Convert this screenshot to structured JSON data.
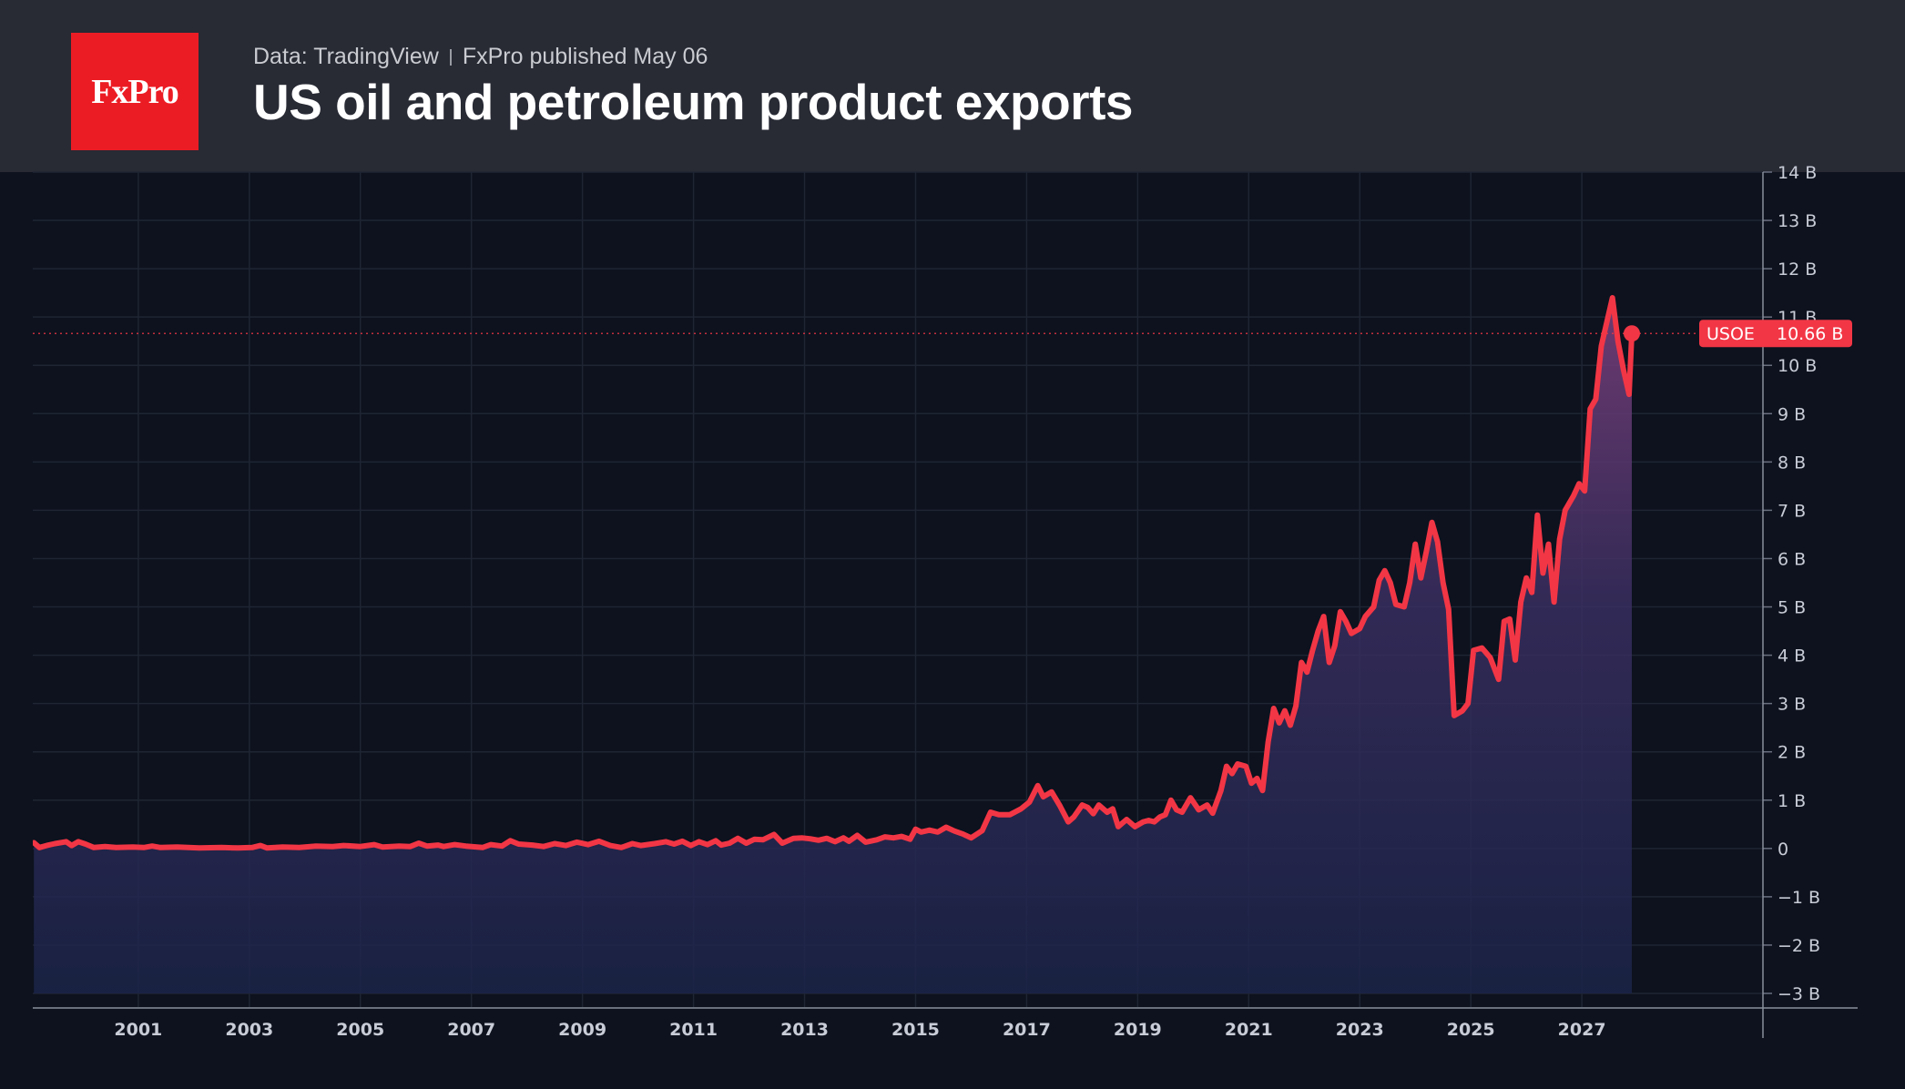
{
  "header": {
    "source": "Data: TradingView",
    "published": "FxPro published May 06",
    "logo": "FxPro"
  },
  "chart_data": {
    "type": "area",
    "title": "US oil and petroleum product exports",
    "xlabel": "",
    "ylabel": "",
    "ylim": [
      -3,
      14
    ],
    "xlim": [
      1999.6,
      2028.4
    ],
    "x_ticks": [
      "2001",
      "2003",
      "2005",
      "2007",
      "2009",
      "2011",
      "2013",
      "2015",
      "2017",
      "2019",
      "2021",
      "2023",
      "2025",
      "2027"
    ],
    "y_ticks": [
      "−3 B",
      "−2 B",
      "−1 B",
      "0",
      "1 B",
      "2 B",
      "3 B",
      "4 B",
      "5 B",
      "6 B",
      "7 B",
      "8 B",
      "9 B",
      "10 B",
      "11 B",
      "12 B",
      "13 B",
      "14 B"
    ],
    "grid": true,
    "unit": "B",
    "series": [
      {
        "name": "USOE",
        "color": "#f23645",
        "last_value_label": "10.66 B",
        "points": [
          [
            1999.62,
            0.12
          ],
          [
            1999.72,
            0.02
          ],
          [
            1999.85,
            0.06
          ],
          [
            2000.0,
            0.1
          ],
          [
            2000.2,
            0.14
          ],
          [
            2000.3,
            0.06
          ],
          [
            2000.42,
            0.14
          ],
          [
            2000.55,
            0.09
          ],
          [
            2000.7,
            0.02
          ],
          [
            2000.9,
            0.04
          ],
          [
            2001.1,
            0.02
          ],
          [
            2001.4,
            0.03
          ],
          [
            2001.6,
            0.02
          ],
          [
            2001.75,
            0.05
          ],
          [
            2001.9,
            0.02
          ],
          [
            2002.2,
            0.03
          ],
          [
            2002.6,
            0.01
          ],
          [
            2003.0,
            0.02
          ],
          [
            2003.3,
            0.01
          ],
          [
            2003.55,
            0.02
          ],
          [
            2003.7,
            0.06
          ],
          [
            2003.82,
            0.01
          ],
          [
            2004.1,
            0.03
          ],
          [
            2004.4,
            0.02
          ],
          [
            2004.7,
            0.05
          ],
          [
            2005.0,
            0.04
          ],
          [
            2005.2,
            0.06
          ],
          [
            2005.5,
            0.04
          ],
          [
            2005.75,
            0.08
          ],
          [
            2005.9,
            0.03
          ],
          [
            2006.2,
            0.05
          ],
          [
            2006.4,
            0.04
          ],
          [
            2006.55,
            0.11
          ],
          [
            2006.7,
            0.05
          ],
          [
            2006.9,
            0.07
          ],
          [
            2007.0,
            0.04
          ],
          [
            2007.2,
            0.08
          ],
          [
            2007.4,
            0.05
          ],
          [
            2007.7,
            0.02
          ],
          [
            2007.85,
            0.08
          ],
          [
            2008.05,
            0.05
          ],
          [
            2008.2,
            0.16
          ],
          [
            2008.35,
            0.09
          ],
          [
            2008.6,
            0.07
          ],
          [
            2008.8,
            0.04
          ],
          [
            2009.0,
            0.1
          ],
          [
            2009.2,
            0.06
          ],
          [
            2009.4,
            0.13
          ],
          [
            2009.6,
            0.08
          ],
          [
            2009.8,
            0.15
          ],
          [
            2010.0,
            0.06
          ],
          [
            2010.2,
            0.02
          ],
          [
            2010.4,
            0.1
          ],
          [
            2010.55,
            0.06
          ],
          [
            2010.8,
            0.1
          ],
          [
            2011.0,
            0.14
          ],
          [
            2011.15,
            0.09
          ],
          [
            2011.3,
            0.15
          ],
          [
            2011.45,
            0.06
          ],
          [
            2011.6,
            0.14
          ],
          [
            2011.75,
            0.08
          ],
          [
            2011.9,
            0.16
          ],
          [
            2012.0,
            0.07
          ],
          [
            2012.15,
            0.11
          ],
          [
            2012.3,
            0.21
          ],
          [
            2012.45,
            0.11
          ],
          [
            2012.6,
            0.19
          ],
          [
            2012.75,
            0.18
          ],
          [
            2012.95,
            0.29
          ],
          [
            2013.1,
            0.11
          ],
          [
            2013.3,
            0.21
          ],
          [
            2013.45,
            0.22
          ],
          [
            2013.6,
            0.2
          ],
          [
            2013.75,
            0.17
          ],
          [
            2013.9,
            0.21
          ],
          [
            2014.05,
            0.14
          ],
          [
            2014.2,
            0.22
          ],
          [
            2014.3,
            0.15
          ],
          [
            2014.45,
            0.27
          ],
          [
            2014.6,
            0.13
          ],
          [
            2014.8,
            0.18
          ],
          [
            2014.95,
            0.24
          ],
          [
            2015.1,
            0.22
          ],
          [
            2015.25,
            0.25
          ],
          [
            2015.4,
            0.19
          ],
          [
            2015.5,
            0.4
          ],
          [
            2015.6,
            0.34
          ],
          [
            2015.75,
            0.38
          ],
          [
            2015.9,
            0.34
          ],
          [
            2016.05,
            0.44
          ],
          [
            2016.2,
            0.36
          ],
          [
            2016.35,
            0.3
          ],
          [
            2016.5,
            0.22
          ],
          [
            2016.7,
            0.37
          ],
          [
            2016.85,
            0.75
          ],
          [
            2017.0,
            0.7
          ],
          [
            2017.2,
            0.7
          ],
          [
            2017.4,
            0.82
          ],
          [
            2017.55,
            0.96
          ],
          [
            2017.7,
            1.3
          ],
          [
            2017.8,
            1.07
          ],
          [
            2017.95,
            1.17
          ],
          [
            2018.1,
            0.88
          ],
          [
            2018.25,
            0.55
          ],
          [
            2018.35,
            0.65
          ],
          [
            2018.5,
            0.9
          ],
          [
            2018.6,
            0.85
          ],
          [
            2018.7,
            0.72
          ],
          [
            2018.8,
            0.9
          ],
          [
            2018.95,
            0.75
          ],
          [
            2019.05,
            0.82
          ],
          [
            2019.15,
            0.45
          ],
          [
            2019.3,
            0.6
          ],
          [
            2019.45,
            0.45
          ],
          [
            2019.6,
            0.55
          ],
          [
            2019.7,
            0.58
          ],
          [
            2019.8,
            0.55
          ],
          [
            2019.9,
            0.65
          ],
          [
            2020.0,
            0.7
          ],
          [
            2020.1,
            1.0
          ],
          [
            2020.2,
            0.8
          ],
          [
            2020.3,
            0.75
          ],
          [
            2020.45,
            1.05
          ],
          [
            2020.6,
            0.8
          ],
          [
            2020.75,
            0.9
          ],
          [
            2020.85,
            0.73
          ],
          [
            2021.0,
            1.2
          ],
          [
            2021.1,
            1.7
          ],
          [
            2021.2,
            1.55
          ],
          [
            2021.3,
            1.75
          ],
          [
            2021.45,
            1.7
          ],
          [
            2021.55,
            1.35
          ],
          [
            2021.65,
            1.45
          ],
          [
            2021.75,
            1.2
          ],
          [
            2021.85,
            2.2
          ],
          [
            2021.95,
            2.9
          ],
          [
            2022.05,
            2.6
          ],
          [
            2022.15,
            2.85
          ],
          [
            2022.25,
            2.55
          ],
          [
            2022.35,
            2.95
          ],
          [
            2022.45,
            3.85
          ],
          [
            2022.55,
            3.65
          ],
          [
            2022.65,
            4.1
          ],
          [
            2022.75,
            4.5
          ],
          [
            2022.85,
            4.8
          ],
          [
            2022.95,
            3.85
          ],
          [
            2023.05,
            4.2
          ],
          [
            2023.15,
            4.9
          ],
          [
            2023.25,
            4.7
          ],
          [
            2023.35,
            4.45
          ],
          [
            2023.5,
            4.55
          ],
          [
            2023.6,
            4.8
          ],
          [
            2023.75,
            5.0
          ],
          [
            2023.85,
            5.55
          ],
          [
            2023.95,
            5.75
          ],
          [
            2024.05,
            5.5
          ],
          [
            2024.15,
            5.05
          ],
          [
            2024.3,
            5.0
          ],
          [
            2024.4,
            5.5
          ],
          [
            2024.5,
            6.3
          ],
          [
            2024.6,
            5.6
          ],
          [
            2024.7,
            6.15
          ],
          [
            2024.8,
            6.75
          ],
          [
            2024.9,
            6.35
          ],
          [
            2025.0,
            5.5
          ],
          [
            2025.1,
            4.95
          ],
          [
            2025.2,
            2.75
          ],
          [
            2025.35,
            2.85
          ],
          [
            2025.45,
            3.0
          ],
          [
            2025.55,
            4.1
          ],
          [
            2025.7,
            4.15
          ],
          [
            2025.85,
            3.95
          ],
          [
            2026.0,
            3.5
          ],
          [
            2026.1,
            4.7
          ],
          [
            2026.2,
            4.75
          ],
          [
            2026.3,
            3.9
          ],
          [
            2026.4,
            5.1
          ],
          [
            2026.5,
            5.6
          ],
          [
            2026.6,
            5.3
          ],
          [
            2026.7,
            6.9
          ],
          [
            2026.8,
            5.7
          ],
          [
            2026.9,
            6.3
          ],
          [
            2027.0,
            5.1
          ],
          [
            2027.1,
            6.4
          ],
          [
            2027.2,
            7.0
          ],
          [
            2027.35,
            7.3
          ],
          [
            2027.45,
            7.55
          ],
          [
            2027.55,
            7.4
          ],
          [
            2027.65,
            9.1
          ],
          [
            2027.75,
            9.3
          ],
          [
            2027.85,
            10.4
          ],
          [
            2027.95,
            10.9
          ],
          [
            2028.05,
            11.4
          ],
          [
            2028.15,
            10.5
          ],
          [
            2028.25,
            9.9
          ],
          [
            2028.35,
            9.4
          ],
          [
            2028.4,
            10.66
          ]
        ]
      }
    ],
    "legend": "none"
  }
}
